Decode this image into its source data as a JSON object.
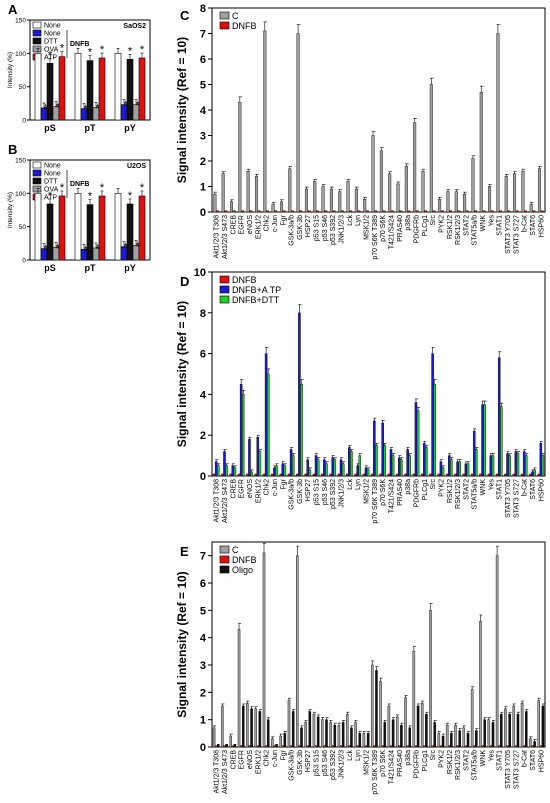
{
  "colors": {
    "C": "#a0a0a0",
    "DNFB": "#e01010",
    "ATP_blue": "#1a1ad0",
    "DTT_green": "#22cc22",
    "Oligo": "#111111",
    "None_white": "#ffffff",
    "None_blue": "#1a1ad0",
    "DTT_black": "#111111",
    "OVA_gray": "#a0a0a0",
    "ATP_red": "#e01010"
  },
  "chart_data": [
    {
      "panel": "A",
      "type": "bar",
      "cell_line": "SaOS2",
      "group_label": "DNFB",
      "ylabel": "Intensity (%)",
      "ylim": [
        0,
        150
      ],
      "yticks": [
        0,
        50,
        100,
        150
      ],
      "categories": [
        "pS",
        "pT",
        "pY"
      ],
      "series": [
        {
          "name": "None",
          "values": [
            100,
            100,
            100
          ],
          "color": "#ffffff"
        },
        {
          "name": "None",
          "values": [
            18,
            17,
            23
          ],
          "color": "#1a1ad0",
          "mark": "#"
        },
        {
          "name": "DTT",
          "values": [
            85,
            89,
            91
          ],
          "color": "#111111",
          "mark": "*"
        },
        {
          "name": "OVA",
          "values": [
            20,
            19,
            23
          ],
          "color": "#a0a0a0",
          "mark": "#"
        },
        {
          "name": "ATP",
          "values": [
            95,
            93,
            93
          ],
          "color": "#e01010",
          "mark": "*"
        }
      ]
    },
    {
      "panel": "B",
      "type": "bar",
      "cell_line": "U2OS",
      "group_label": "DNFB",
      "ylabel": "Intensity (%)",
      "ylim": [
        0,
        150
      ],
      "yticks": [
        0,
        50,
        100,
        150
      ],
      "categories": [
        "pS",
        "pT",
        "pY"
      ],
      "series": [
        {
          "name": "None",
          "values": [
            100,
            100,
            100
          ],
          "color": "#ffffff"
        },
        {
          "name": "None",
          "values": [
            17,
            16,
            20
          ],
          "color": "#1a1ad0",
          "mark": "#"
        },
        {
          "name": "DTT",
          "values": [
            84,
            83,
            84
          ],
          "color": "#111111",
          "mark": "*"
        },
        {
          "name": "OVA",
          "values": [
            19,
            18,
            22
          ],
          "color": "#a0a0a0",
          "mark": "#"
        },
        {
          "name": "ATP",
          "values": [
            96,
            96,
            96
          ],
          "color": "#e01010",
          "mark": "*"
        }
      ]
    },
    {
      "panel": "C",
      "type": "bar",
      "ylabel": "Signal intensity (Ref = 10)",
      "ylim": [
        0,
        8
      ],
      "yticks": [
        0,
        1,
        2,
        3,
        4,
        5,
        6,
        7,
        8
      ],
      "categories": [
        "Akt1/2/3 T308",
        "Akt1/2/3 S473",
        "CREB",
        "EGFR",
        "eNOS",
        "ERK1/2",
        "Chk2",
        "c-Jun",
        "Fgr",
        "GSK-3a/b",
        "GSK-3b",
        "HSP27",
        "p53 S15",
        "p53 S46",
        "p53 S392",
        "JNK1/2/3",
        "Lck",
        "Lyn",
        "MSK1/2",
        "p70 S6K T389",
        "p70 S6K",
        "T421/S424",
        "PRAS40",
        "p38a",
        "PDGFRb",
        "PLCg1",
        "Src",
        "PYK2",
        "RSK1/2",
        "RSK1/2/3",
        "STAT2",
        "STAT5a/b",
        "WNK",
        "Yes",
        "STAT1",
        "STAT3 Y705",
        "STAT3 S727",
        "b-Cat",
        "STAT6",
        "HSP60"
      ],
      "series": [
        {
          "name": "C",
          "values": [
            0.7,
            1.5,
            0.4,
            4.3,
            1.6,
            1.4,
            7.1,
            0.3,
            0.4,
            1.7,
            7.0,
            0.9,
            1.2,
            1.0,
            0.9,
            0.8,
            1.2,
            0.9,
            0.5,
            3.0,
            2.4,
            1.5,
            1.1,
            1.8,
            3.5,
            1.6,
            5.0,
            0.5,
            0.8,
            0.8,
            0.7,
            2.1,
            4.7,
            1.0,
            7.0,
            1.4,
            1.5,
            1.6,
            0.3,
            1.7
          ]
        },
        {
          "name": "DNFB",
          "values": [
            0.05,
            0.05,
            0.05,
            0.05,
            0.05,
            0.05,
            0.05,
            0.05,
            0.05,
            0.05,
            0.05,
            0.05,
            0.05,
            0.05,
            0.05,
            0.05,
            0.05,
            0.05,
            0.05,
            0.05,
            0.05,
            0.05,
            0.05,
            0.05,
            0.05,
            0.05,
            0.05,
            0.05,
            0.05,
            0.05,
            0.05,
            0.05,
            0.05,
            0.05,
            0.05,
            0.05,
            0.05,
            0.05,
            0.05,
            0.05
          ]
        }
      ]
    },
    {
      "panel": "D",
      "type": "bar",
      "ylabel": "Signal intensity  (Ref = 10)",
      "ylim": [
        0,
        10
      ],
      "yticks": [
        0,
        2,
        4,
        6,
        8,
        10
      ],
      "categories": [
        "Akt1/2/3 T308",
        "Akt1/2/3 S473",
        "CREB",
        "EGFR",
        "eNOS",
        "ERK1/2",
        "Chk2",
        "c-Jun",
        "Fgr",
        "GSK-3a/b",
        "GSK-3b",
        "HSP27",
        "p53 S15",
        "p53 S46",
        "p53 S392",
        "JNK1/2/3",
        "Lck",
        "Lyn",
        "MSK1/2",
        "p70 S6K T389",
        "p70 S6K",
        "T421/S424",
        "PRAS40",
        "p38a",
        "PDGFRb",
        "PLCg1",
        "Src",
        "PYK2",
        "RSK1/2",
        "RSK1/2/3",
        "STAT2",
        "STAT5a/b",
        "WNK",
        "Yes",
        "STAT1",
        "STAT3 Y705",
        "STAT3 S727",
        "b-Cat",
        "STAT6",
        "HSP60"
      ],
      "series": [
        {
          "name": "DNFB",
          "values": [
            0.1,
            0.1,
            0.1,
            0.1,
            0.1,
            0.1,
            0.1,
            0.1,
            0.1,
            0.1,
            0.1,
            0.1,
            0.1,
            0.1,
            0.1,
            0.1,
            0.1,
            0.1,
            0.1,
            0.1,
            0.1,
            0.1,
            0.1,
            0.1,
            0.1,
            0.1,
            0.1,
            0.1,
            0.1,
            0.1,
            0.1,
            0.1,
            0.1,
            0.1,
            0.1,
            0.1,
            0.1,
            0.1,
            0.1,
            0.1
          ]
        },
        {
          "name": "DNFB+A TP",
          "values": [
            0.7,
            1.2,
            0.5,
            4.5,
            1.8,
            1.9,
            6.0,
            0.4,
            0.6,
            1.3,
            8.0,
            0.8,
            1.0,
            0.8,
            0.9,
            0.8,
            1.4,
            0.5,
            0.4,
            2.7,
            2.6,
            1.3,
            0.9,
            1.3,
            3.6,
            1.6,
            6.0,
            0.7,
            1.0,
            0.7,
            0.6,
            2.2,
            3.5,
            1.0,
            5.8,
            1.1,
            1.2,
            1.2,
            0.2,
            1.6
          ]
        },
        {
          "name": "DNFB+DTT",
          "values": [
            0.5,
            0.5,
            0.4,
            4.0,
            0.2,
            1.2,
            5.0,
            0.5,
            0.5,
            1.0,
            4.5,
            0.3,
            0.8,
            0.6,
            0.8,
            0.6,
            1.2,
            1.0,
            0.3,
            1.5,
            1.5,
            1.0,
            0.8,
            1.0,
            3.2,
            1.4,
            4.5,
            0.4,
            0.8,
            0.7,
            0.6,
            1.3,
            3.5,
            1.0,
            3.4,
            1.0,
            1.1,
            1.0,
            0.3,
            1.0
          ]
        }
      ]
    },
    {
      "panel": "E",
      "type": "bar",
      "ylabel": "Signal intensity  (Ref = 10)",
      "ylim": [
        0,
        7.5
      ],
      "yticks": [
        0,
        1,
        2,
        3,
        4,
        5,
        6,
        7
      ],
      "categories": [
        "Akt1/2/3 T308",
        "Akt1/2/3 S473",
        "CREB",
        "EGFR",
        "eNOS",
        "ERK1/2",
        "Chk2",
        "c-Jun",
        "Fgr",
        "GSK-3a/b",
        "GSK-3b",
        "HSP27",
        "p53 S15",
        "p53 S46",
        "p53 S392",
        "JNK1/2/3",
        "Lck",
        "Lyn",
        "MSK1/2",
        "p70 S6K T389",
        "p70 S6K",
        "T421/S424",
        "PRAS40",
        "p38a",
        "PDGFRb",
        "PLCg1",
        "Src",
        "PYK2",
        "RSK1/2",
        "RSK1/2/3",
        "STAT2",
        "STAT5a/b",
        "WNK",
        "Yes",
        "STAT1",
        "STAT3 Y705",
        "STAT3 S727",
        "b-Cat",
        "STAT6",
        "HSP60"
      ],
      "series": [
        {
          "name": "C",
          "values": [
            0.7,
            1.5,
            0.4,
            4.3,
            1.6,
            1.4,
            7.1,
            0.3,
            0.4,
            1.7,
            7.0,
            0.9,
            1.2,
            1.0,
            0.9,
            0.8,
            1.2,
            0.9,
            0.5,
            3.0,
            2.4,
            1.5,
            1.1,
            1.8,
            3.5,
            1.6,
            5.0,
            0.5,
            0.8,
            0.8,
            0.7,
            2.1,
            4.6,
            1.0,
            7.0,
            1.4,
            1.5,
            1.6,
            0.3,
            1.7
          ]
        },
        {
          "name": "DNFB",
          "values": [
            0.05,
            0.05,
            0.05,
            0.05,
            0.05,
            0.05,
            0.05,
            0.05,
            0.05,
            0.05,
            0.05,
            0.05,
            0.05,
            0.05,
            0.05,
            0.05,
            0.05,
            0.05,
            0.05,
            0.05,
            0.05,
            0.05,
            0.05,
            0.05,
            0.05,
            0.05,
            0.05,
            0.05,
            0.05,
            0.05,
            0.05,
            0.05,
            0.05,
            0.05,
            0.05,
            0.05,
            0.05,
            0.05,
            0.05,
            0.05
          ]
        },
        {
          "name": "Oligo",
          "values": [
            0.1,
            0.1,
            0.1,
            1.5,
            1.4,
            1.3,
            1.0,
            0.1,
            0.5,
            1.3,
            0.7,
            1.3,
            1.1,
            1.0,
            0.8,
            0.9,
            0.7,
            0.5,
            0.5,
            2.8,
            0.9,
            1.0,
            0.8,
            0.7,
            1.5,
            1.2,
            0.9,
            0.4,
            0.5,
            0.6,
            0.5,
            0.6,
            1.0,
            0.9,
            1.2,
            1.2,
            1.2,
            1.3,
            0.2,
            1.5
          ]
        }
      ]
    }
  ]
}
